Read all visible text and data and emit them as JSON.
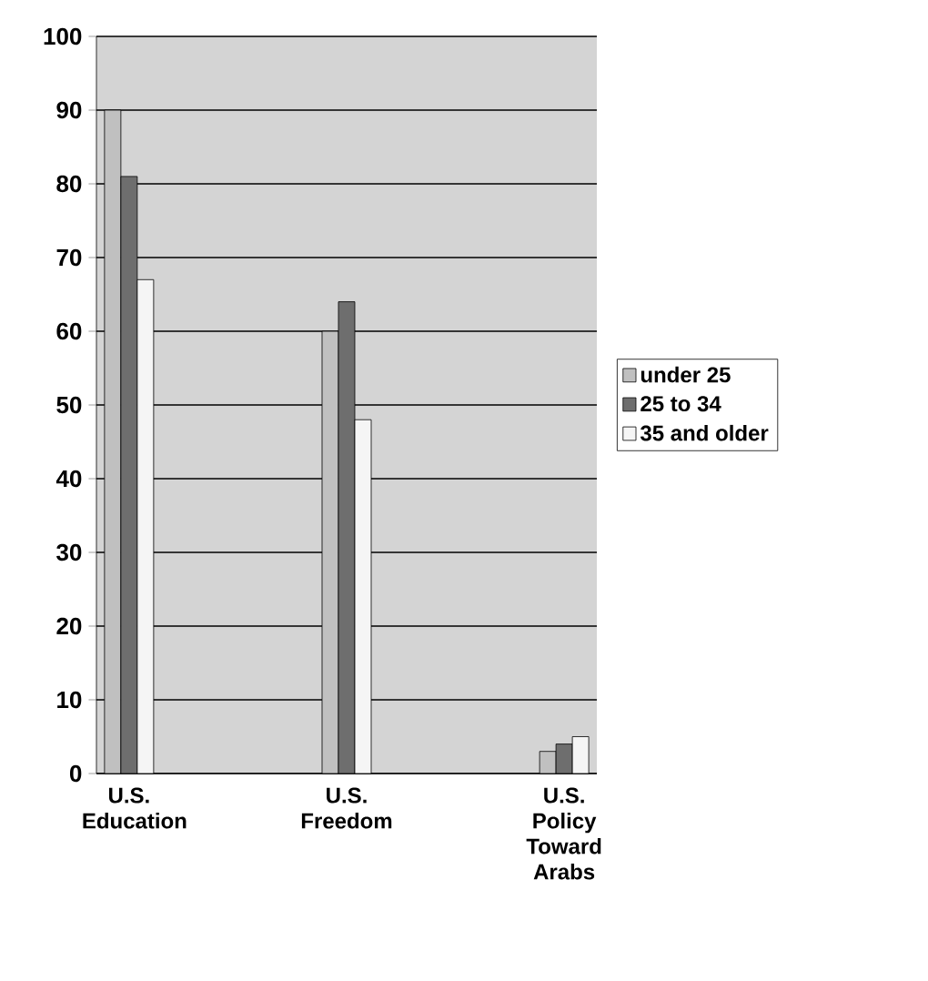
{
  "chart_data": {
    "type": "bar",
    "categories": [
      "U.S. Education",
      "U.S. Freedom",
      "U.S. Policy Toward Arabs"
    ],
    "series": [
      {
        "name": "under 25",
        "color": "#c0c0c0",
        "values": [
          90,
          60,
          3
        ]
      },
      {
        "name": "25 to 34",
        "color": "#6e6e6e",
        "values": [
          81,
          64,
          4
        ]
      },
      {
        "name": "35 and older",
        "color": "#f5f5f5",
        "values": [
          67,
          48,
          5
        ]
      }
    ],
    "ylim": [
      0,
      100
    ],
    "yticks": [
      0,
      10,
      20,
      30,
      40,
      50,
      60,
      70,
      80,
      90,
      100
    ],
    "grid": "y",
    "legend": "right"
  }
}
